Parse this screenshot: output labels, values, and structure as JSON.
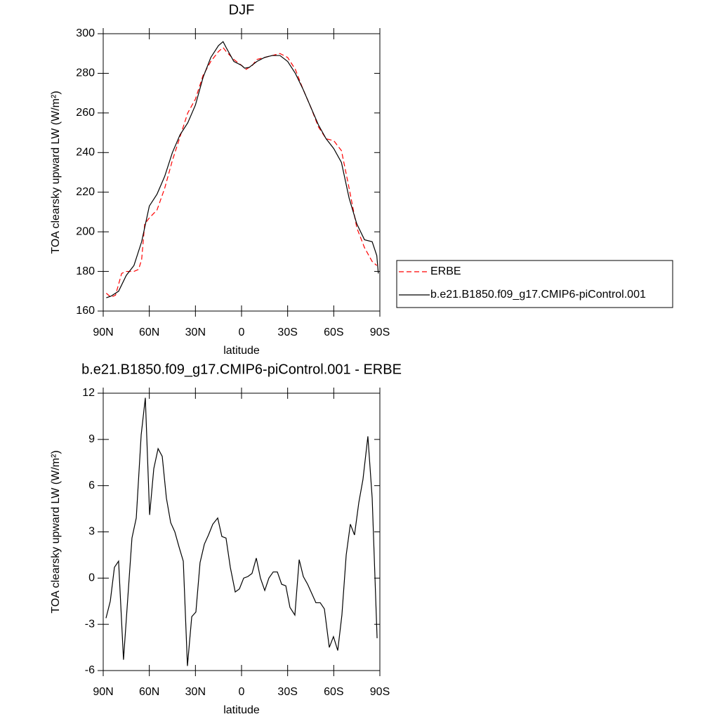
{
  "chart_data": [
    {
      "type": "line",
      "title": "DJF",
      "xlabel": "latitude",
      "ylabel": "TOA clearsky upward LW (W/m²)",
      "xlim": [
        90,
        -90
      ],
      "xticks": [
        {
          "value": 90,
          "label": "90N"
        },
        {
          "value": 60,
          "label": "60N"
        },
        {
          "value": 30,
          "label": "30N"
        },
        0,
        {
          "value": -30,
          "label": "30S"
        },
        {
          "value": -60,
          "label": "60S"
        },
        {
          "value": -90,
          "label": "90S"
        }
      ],
      "ylim": [
        160,
        300
      ],
      "yticks": [
        160,
        180,
        200,
        220,
        240,
        260,
        280,
        300
      ],
      "legend": "right",
      "series": [
        {
          "name": "ERBE",
          "color": "#ff0000",
          "style": "dashed",
          "x": [
            88,
            85,
            82,
            78,
            75,
            70,
            67,
            65,
            63,
            60,
            55,
            50,
            45,
            40,
            35,
            30,
            25,
            20,
            15,
            12,
            10,
            5,
            0,
            -3,
            -7,
            -10,
            -15,
            -20,
            -25,
            -30,
            -35,
            -40,
            -45,
            -50,
            -55,
            -60,
            -65,
            -70,
            -75,
            -80,
            -85,
            -88
          ],
          "values": [
            169,
            167,
            168,
            179,
            180,
            180,
            181,
            186,
            204,
            207,
            211,
            222,
            236,
            248,
            260,
            267,
            279,
            286,
            291,
            293,
            291,
            287,
            284,
            282,
            284,
            287,
            288,
            289,
            290,
            288,
            282,
            272,
            263,
            253,
            247,
            246,
            241,
            222,
            202,
            192,
            185,
            183
          ]
        },
        {
          "name": "b.e21.B1850.f09_g17.CMIP6-piControl.001",
          "color": "#000000",
          "style": "solid",
          "x": [
            88,
            85,
            80,
            75,
            70,
            65,
            60,
            55,
            50,
            45,
            40,
            35,
            30,
            25,
            20,
            15,
            12,
            10,
            5,
            0,
            -2,
            -5,
            -10,
            -15,
            -20,
            -25,
            -30,
            -35,
            -40,
            -45,
            -50,
            -55,
            -60,
            -65,
            -70,
            -75,
            -80,
            -85,
            -88,
            -89
          ],
          "values": [
            166.7,
            167.5,
            170,
            178,
            183,
            195,
            213,
            219,
            228,
            240,
            249,
            255,
            264,
            278,
            288,
            294,
            296,
            293,
            286,
            284,
            282.6,
            283,
            286,
            288,
            289,
            289,
            286,
            280,
            272,
            263,
            254,
            247,
            242,
            235,
            217,
            204,
            196,
            195,
            188,
            179
          ]
        }
      ]
    },
    {
      "type": "line",
      "title": "b.e21.B1850.f09_g17.CMIP6-piControl.001 - ERBE",
      "xlabel": "latitude",
      "ylabel": "TOA clearsky upward LW (W/m²)",
      "xlim": [
        90,
        -90
      ],
      "xticks": [
        {
          "value": 90,
          "label": "90N"
        },
        {
          "value": 60,
          "label": "60N"
        },
        {
          "value": 30,
          "label": "30N"
        },
        0,
        {
          "value": -30,
          "label": "30S"
        },
        {
          "value": -60,
          "label": "60S"
        },
        {
          "value": -90,
          "label": "90S"
        }
      ],
      "ylim": [
        -6,
        12
      ],
      "yticks": [
        -6,
        -3,
        0,
        3,
        6,
        9,
        12
      ],
      "series": [
        {
          "color": "#000000",
          "style": "solid",
          "x": [
            88.2,
            85.4,
            82.7,
            80,
            76.8,
            71.3,
            68.5,
            65.3,
            62.6,
            59.8,
            57.1,
            54.3,
            51.6,
            48.9,
            46.1,
            43.4,
            40.6,
            37.9,
            35.2,
            32.4,
            29.7,
            27,
            24.2,
            21.5,
            18.7,
            15.5,
            12.8,
            10.1,
            7.3,
            4.1,
            1.4,
            -1.4,
            -4.1,
            -6.8,
            -9.6,
            -12.3,
            -15.1,
            -17.8,
            -20.6,
            -23.3,
            -26.1,
            -28.8,
            -31.5,
            -34.7,
            -37.5,
            -40.2,
            -43,
            -45.7,
            -48.4,
            -51.2,
            -53.9,
            -57.1,
            -59.8,
            -62.6,
            -65.3,
            -68.1,
            -70.8,
            -73.5,
            -76.3,
            -79,
            -82.2,
            -85,
            -88.2
          ],
          "values": [
            -2.6,
            -1.5,
            0.7,
            1.1,
            -5.3,
            2.6,
            3.9,
            9.3,
            11.7,
            4.1,
            7.1,
            8.4,
            7.9,
            5.2,
            3.6,
            3.0,
            2.0,
            1.1,
            -5.7,
            -2.5,
            -2.2,
            1.0,
            2.2,
            2.8,
            3.5,
            3.9,
            2.7,
            2.6,
            0.7,
            -0.9,
            -0.7,
            0,
            0.1,
            0.3,
            1.3,
            0,
            -0.8,
            0,
            0.4,
            0.4,
            -0.4,
            -0.5,
            -1.9,
            -2.4,
            1.2,
            0.1,
            -0.4,
            -1.0,
            -1.6,
            -1.6,
            -2.0,
            -4.5,
            -3.8,
            -4.7,
            -2.4,
            1.5,
            3.5,
            2.8,
            4.9,
            6.4,
            9.2,
            5.2,
            -3.9
          ]
        }
      ]
    }
  ]
}
